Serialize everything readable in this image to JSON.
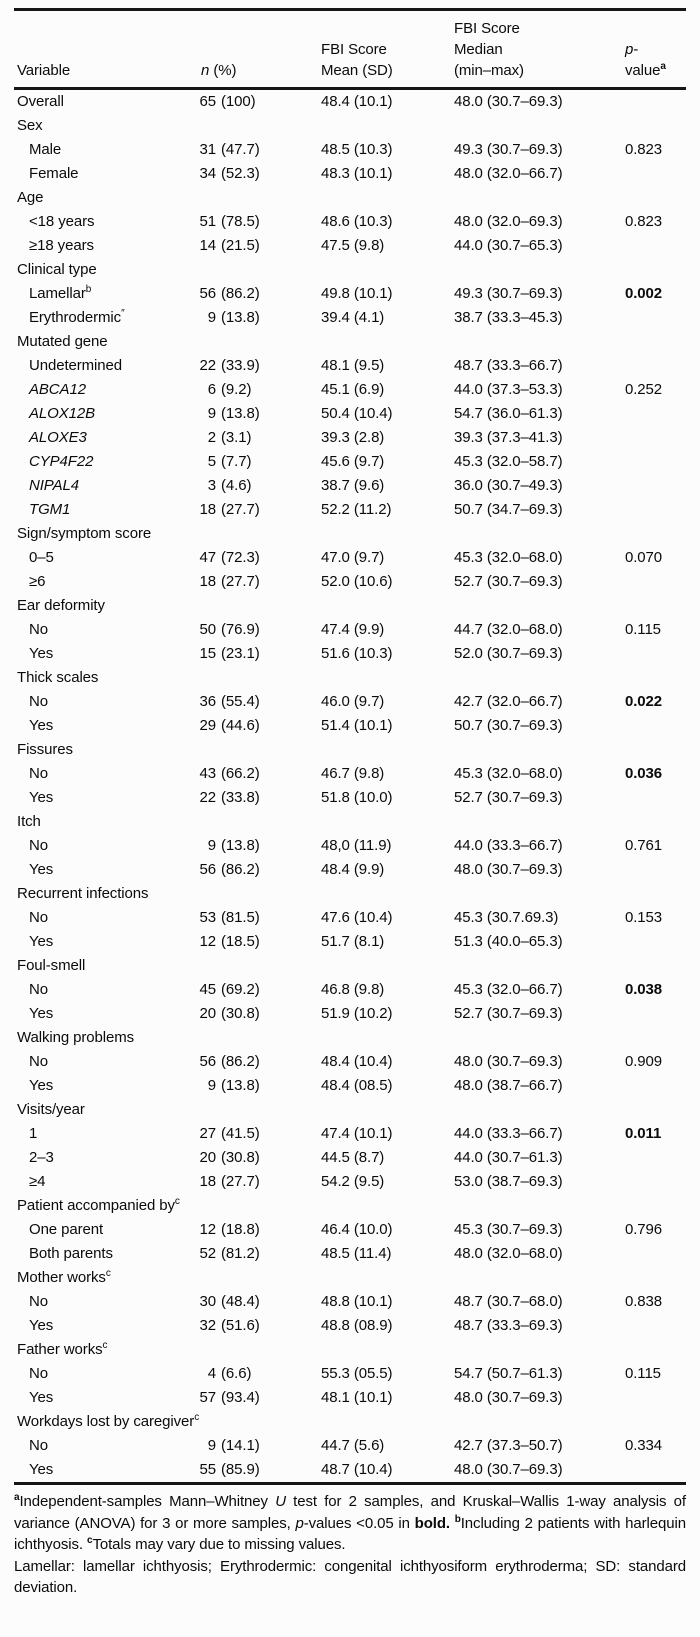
{
  "header": {
    "variable": "Variable",
    "n_italic": "n",
    "n_rest": " (%)",
    "mean_l1": "FBI Score",
    "mean_l2": "Mean (SD)",
    "median_l1": "FBI Score",
    "median_l2": "Median",
    "median_l3": "(min–max)",
    "p_l1_italic": "p",
    "p_l1_rest": "-",
    "p_l2": "value",
    "p_sup": "a"
  },
  "table": {
    "rows": [
      {
        "label": "Overall",
        "ind": 0,
        "it": 0,
        "sup": "",
        "n": "65",
        "pct": "(100)",
        "mean": "48.4 (10.1)",
        "med": "48.0 (30.7–69.3)",
        "p": "",
        "pb": 0
      },
      {
        "label": "Sex",
        "group": 1,
        "sup": ""
      },
      {
        "label": "Male",
        "it": 0,
        "sup": "",
        "n": "31",
        "pct": "(47.7)",
        "mean": "48.5 (10.3)",
        "med": "49.3 (30.7–69.3)",
        "p": "0.823",
        "pb": 0
      },
      {
        "label": "Female",
        "it": 0,
        "sup": "",
        "n": "34",
        "pct": "(52.3)",
        "mean": "48.3 (10.1)",
        "med": "48.0 (32.0–66.7)",
        "p": "",
        "pb": 0
      },
      {
        "label": "Age",
        "group": 1,
        "sup": ""
      },
      {
        "label": "<18 years",
        "it": 0,
        "sup": "",
        "n": "51",
        "pct": "(78.5)",
        "mean": "48.6 (10.3)",
        "med": "48.0 (32.0–69.3)",
        "p": "0.823",
        "pb": 0
      },
      {
        "label": "≥18 years",
        "it": 0,
        "sup": "",
        "n": "14",
        "pct": "(21.5)",
        "mean": "47.5 (9.8)",
        "med": "44.0 (30.7–65.3)",
        "p": "",
        "pb": 0
      },
      {
        "label": "Clinical type",
        "group": 1,
        "sup": ""
      },
      {
        "label": "Lamellar",
        "it": 0,
        "sup": "b",
        "n": "56",
        "pct": "(86.2)",
        "mean": "49.8 (10.1)",
        "med": "49.3 (30.7–69.3)",
        "p": "0.002",
        "pb": 1
      },
      {
        "label": "Erythrodermic",
        "it": 0,
        "sup": "″",
        "n": "9",
        "pct": "(13.8)",
        "mean": "39.4 (4.1)",
        "med": "38.7 (33.3–45.3)",
        "p": "",
        "pb": 0
      },
      {
        "label": "Mutated gene",
        "group": 1,
        "sup": ""
      },
      {
        "label": "Undetermined",
        "it": 0,
        "sup": "",
        "n": "22",
        "pct": "(33.9)",
        "mean": "48.1 (9.5)",
        "med": "48.7 (33.3–66.7)",
        "p": "",
        "pb": 0
      },
      {
        "label": "ABCA12",
        "it": 1,
        "sup": "",
        "n": "6",
        "pct": "(9.2)",
        "mean": "45.1 (6.9)",
        "med": "44.0 (37.3–53.3)",
        "p": "0.252",
        "pb": 0
      },
      {
        "label": "ALOX12B",
        "it": 1,
        "sup": "",
        "n": "9",
        "pct": "(13.8)",
        "mean": "50.4 (10.4)",
        "med": "54.7 (36.0–61.3)",
        "p": "",
        "pb": 0
      },
      {
        "label": "ALOXE3",
        "it": 1,
        "sup": "",
        "n": "2",
        "pct": "(3.1)",
        "mean": "39.3 (2.8)",
        "med": "39.3 (37.3–41.3)",
        "p": "",
        "pb": 0
      },
      {
        "label": "CYP4F22",
        "it": 1,
        "sup": "",
        "n": "5",
        "pct": "(7.7)",
        "mean": "45.6 (9.7)",
        "med": "45.3 (32.0–58.7)",
        "p": "",
        "pb": 0
      },
      {
        "label": "NIPAL4",
        "it": 1,
        "sup": "",
        "n": "3",
        "pct": "(4.6)",
        "mean": "38.7 (9.6)",
        "med": "36.0 (30.7–49.3)",
        "p": "",
        "pb": 0
      },
      {
        "label": "TGM1",
        "it": 1,
        "sup": "",
        "n": "18",
        "pct": "(27.7)",
        "mean": "52.2 (11.2)",
        "med": "50.7 (34.7–69.3)",
        "p": "",
        "pb": 0
      },
      {
        "label": "Sign/symptom score",
        "group": 1,
        "sup": ""
      },
      {
        "label": "0–5",
        "it": 0,
        "sup": "",
        "n": "47",
        "pct": "(72.3)",
        "mean": "47.0 (9.7)",
        "med": "45.3 (32.0–68.0)",
        "p": "0.070",
        "pb": 0
      },
      {
        "label": "≥6",
        "it": 0,
        "sup": "",
        "n": "18",
        "pct": "(27.7)",
        "mean": "52.0 (10.6)",
        "med": "52.7 (30.7–69.3)",
        "p": "",
        "pb": 0
      },
      {
        "label": "Ear deformity",
        "group": 1,
        "sup": ""
      },
      {
        "label": "No",
        "it": 0,
        "sup": "",
        "n": "50",
        "pct": "(76.9)",
        "mean": "47.4 (9.9)",
        "med": "44.7 (32.0–68.0)",
        "p": "0.115",
        "pb": 0
      },
      {
        "label": "Yes",
        "it": 0,
        "sup": "",
        "n": "15",
        "pct": "(23.1)",
        "mean": "51.6 (10.3)",
        "med": "52.0 (30.7–69.3)",
        "p": "",
        "pb": 0
      },
      {
        "label": "Thick scales",
        "group": 1,
        "sup": ""
      },
      {
        "label": "No",
        "it": 0,
        "sup": "",
        "n": "36",
        "pct": "(55.4)",
        "mean": "46.0 (9.7)",
        "med": "42.7 (32.0–66.7)",
        "p": "0.022",
        "pb": 1
      },
      {
        "label": "Yes",
        "it": 0,
        "sup": "",
        "n": "29",
        "pct": "(44.6)",
        "mean": "51.4 (10.1)",
        "med": "50.7 (30.7–69.3)",
        "p": "",
        "pb": 0
      },
      {
        "label": "Fissures",
        "group": 1,
        "sup": ""
      },
      {
        "label": "No",
        "it": 0,
        "sup": "",
        "n": "43",
        "pct": "(66.2)",
        "mean": "46.7 (9.8)",
        "med": "45.3 (32.0–68.0)",
        "p": "0.036",
        "pb": 1
      },
      {
        "label": "Yes",
        "it": 0,
        "sup": "",
        "n": "22",
        "pct": "(33.8)",
        "mean": "51.8 (10.0)",
        "med": "52.7 (30.7–69.3)",
        "p": "",
        "pb": 0
      },
      {
        "label": "Itch",
        "group": 1,
        "sup": ""
      },
      {
        "label": "No",
        "it": 0,
        "sup": "",
        "n": "9",
        "pct": "(13.8)",
        "mean": "48,0 (11.9)",
        "med": "44.0 (33.3–66.7)",
        "p": "0.761",
        "pb": 0
      },
      {
        "label": "Yes",
        "it": 0,
        "sup": "",
        "n": "56",
        "pct": "(86.2)",
        "mean": "48.4 (9.9)",
        "med": "48.0 (30.7–69.3)",
        "p": "",
        "pb": 0
      },
      {
        "label": "Recurrent infections",
        "group": 1,
        "sup": ""
      },
      {
        "label": "No",
        "it": 0,
        "sup": "",
        "n": "53",
        "pct": "(81.5)",
        "mean": "47.6 (10.4)",
        "med": "45.3 (30.7.69.3)",
        "p": "0.153",
        "pb": 0
      },
      {
        "label": "Yes",
        "it": 0,
        "sup": "",
        "n": "12",
        "pct": "(18.5)",
        "mean": "51.7 (8.1)",
        "med": "51.3 (40.0–65.3)",
        "p": "",
        "pb": 0
      },
      {
        "label": "Foul-smell",
        "group": 1,
        "sup": ""
      },
      {
        "label": "No",
        "it": 0,
        "sup": "",
        "n": "45",
        "pct": "(69.2)",
        "mean": "46.8 (9.8)",
        "med": "45.3 (32.0–66.7)",
        "p": "0.038",
        "pb": 1
      },
      {
        "label": "Yes",
        "it": 0,
        "sup": "",
        "n": "20",
        "pct": "(30.8)",
        "mean": "51.9 (10.2)",
        "med": "52.7 (30.7–69.3)",
        "p": "",
        "pb": 0
      },
      {
        "label": "Walking problems",
        "group": 1,
        "sup": ""
      },
      {
        "label": "No",
        "it": 0,
        "sup": "",
        "n": "56",
        "pct": "(86.2)",
        "mean": "48.4 (10.4)",
        "med": "48.0 (30.7–69.3)",
        "p": "0.909",
        "pb": 0
      },
      {
        "label": "Yes",
        "it": 0,
        "sup": "",
        "n": "9",
        "pct": "(13.8)",
        "mean": "48.4 (08.5)",
        "med": "48.0 (38.7–66.7)",
        "p": "",
        "pb": 0
      },
      {
        "label": "Visits/year",
        "group": 1,
        "sup": ""
      },
      {
        "label": "1",
        "it": 0,
        "sup": "",
        "n": "27",
        "pct": "(41.5)",
        "mean": "47.4 (10.1)",
        "med": "44.0 (33.3–66.7)",
        "p": "0.011",
        "pb": 1
      },
      {
        "label": "2–3",
        "it": 0,
        "sup": "",
        "n": "20",
        "pct": "(30.8)",
        "mean": "44.5 (8.7)",
        "med": "44.0 (30.7–61.3)",
        "p": "",
        "pb": 0
      },
      {
        "label": "≥4",
        "it": 0,
        "sup": "",
        "n": "18",
        "pct": "(27.7)",
        "mean": "54.2 (9.5)",
        "med": "53.0 (38.7–69.3)",
        "p": "",
        "pb": 0
      },
      {
        "label": "Patient accompanied by",
        "group": 1,
        "sup": "c"
      },
      {
        "label": "One parent",
        "it": 0,
        "sup": "",
        "n": "12",
        "pct": "(18.8)",
        "mean": "46.4 (10.0)",
        "med": "45.3 (30.7–69.3)",
        "p": "0.796",
        "pb": 0
      },
      {
        "label": "Both parents",
        "it": 0,
        "sup": "",
        "n": "52",
        "pct": "(81.2)",
        "mean": "48.5 (11.4)",
        "med": "48.0 (32.0–68.0)",
        "p": "",
        "pb": 0
      },
      {
        "label": "Mother works",
        "group": 1,
        "sup": "c"
      },
      {
        "label": "No",
        "it": 0,
        "sup": "",
        "n": "30",
        "pct": "(48.4)",
        "mean": "48.8 (10.1)",
        "med": "48.7 (30.7–68.0)",
        "p": "0.838",
        "pb": 0
      },
      {
        "label": "Yes",
        "it": 0,
        "sup": "",
        "n": "32",
        "pct": "(51.6)",
        "mean": "48.8 (08.9)",
        "med": "48.7 (33.3–69.3)",
        "p": "",
        "pb": 0
      },
      {
        "label": "Father works",
        "group": 1,
        "sup": "c"
      },
      {
        "label": "No",
        "it": 0,
        "sup": "",
        "n": "4",
        "pct": "(6.6)",
        "mean": "55.3 (05.5)",
        "med": "54.7 (50.7–61.3)",
        "p": "0.115",
        "pb": 0
      },
      {
        "label": "Yes",
        "it": 0,
        "sup": "",
        "n": "57",
        "pct": "(93.4)",
        "mean": "48.1 (10.1)",
        "med": "48.0 (30.7–69.3)",
        "p": "",
        "pb": 0
      },
      {
        "label": "Workdays lost by caregiver",
        "group": 1,
        "sup": "c"
      },
      {
        "label": "No",
        "it": 0,
        "sup": "",
        "n": "9",
        "pct": "(14.1)",
        "mean": "44.7 (5.6)",
        "med": "42.7 (37.3–50.7)",
        "p": "0.334",
        "pb": 0
      },
      {
        "label": "Yes",
        "it": 0,
        "sup": "",
        "n": "55",
        "pct": "(85.9)",
        "mean": "48.7 (10.4)",
        "med": "48.0 (30.7–69.3)",
        "p": "",
        "pb": 0
      }
    ]
  },
  "footnotes": {
    "note1": [
      {
        "t": "a",
        "sup": 1,
        "b": 1
      },
      {
        "t": "Independent-samples Mann–Whitney "
      },
      {
        "t": "U",
        "i": 1
      },
      {
        "t": " test for 2 samples, and Kruskal–Wallis 1-way analysis of variance (ANOVA) for 3 or more samples, "
      },
      {
        "t": "p",
        "i": 1
      },
      {
        "t": "-values <0.05 in "
      },
      {
        "t": "bold.",
        "b": 1
      },
      {
        "t": " "
      },
      {
        "t": "b",
        "sup": 1,
        "b": 1
      },
      {
        "t": "Including 2 patients with harlequin ichthyosis. "
      },
      {
        "t": "c",
        "sup": 1,
        "b": 1
      },
      {
        "t": "Totals may vary due to missing values."
      }
    ],
    "note2": [
      {
        "t": "Lamellar: lamellar ichthyosis; Erythrodermic: congenital ichthyosiform erythroderma; SD: standard deviation."
      }
    ]
  },
  "colors": {
    "text": "#0b0b0b",
    "rule": "#161616",
    "background": "#fcfcfc"
  }
}
